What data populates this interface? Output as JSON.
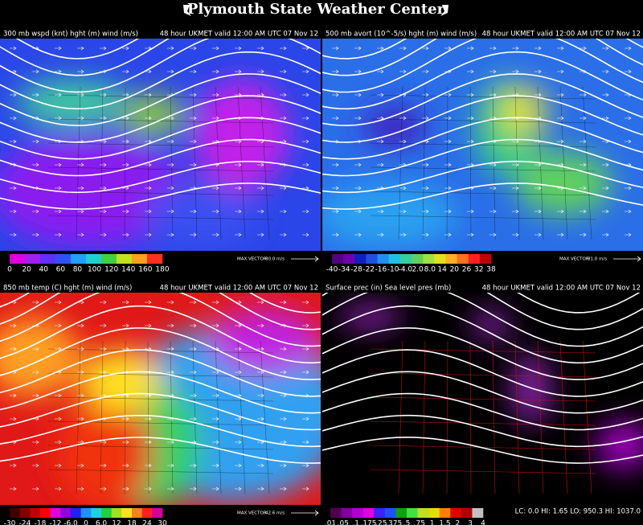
{
  "header": {
    "title": "Plymouth State Weather Center"
  },
  "panels": [
    {
      "field": "300 mb wspd (knt) hght (m) wind (m/s)",
      "valid": "48 hour UKMET valid 12:00 AM UTC 07 Nov 12",
      "scale": [
        "0",
        "20",
        "40",
        "60",
        "80",
        "100",
        "120",
        "140",
        "160",
        "180"
      ],
      "max_vector": "MAX VECTOR",
      "max_vector_value": "80.0 m/s"
    },
    {
      "field": "500 mb avort (10^-5/s) hght (m) wind (m/s)",
      "valid": "48 hour UKMET valid 12:00 AM UTC 07 Nov 12",
      "scale": [
        "-40",
        "-34",
        "-28",
        "-22",
        "-16",
        "-10",
        "-4.0",
        "2.0",
        "8.0",
        "14",
        "20",
        "26",
        "32",
        "38"
      ],
      "max_vector": "MAX VECTOR",
      "max_vector_value": "81.0 m/s"
    },
    {
      "field": "850 mb temp (C) hght (m) wind (m/s)",
      "valid": "48 hour UKMET valid 12:00 AM UTC 07 Nov 12",
      "scale": [
        "-30",
        "-24",
        "-18",
        "-12",
        "-6.0",
        "0",
        "6.0",
        "12",
        "18",
        "24",
        "30"
      ],
      "max_vector": "MAX VECTOR",
      "max_vector_value": "42.6 m/s"
    },
    {
      "field": "Surface prec (in) Sea level pres (mb)",
      "valid": "48 hour UKMET valid 12:00 AM UTC 07 Nov 12",
      "scale": [
        ".01",
        ".05",
        ".1",
        ".175",
        ".25",
        ".375",
        ".5",
        ".75",
        "1",
        "1.5",
        "2",
        "3",
        "4"
      ],
      "stats": "LC: 0.0 HI: 1.65 LO: 950.3 HI: 1037.0"
    }
  ]
}
